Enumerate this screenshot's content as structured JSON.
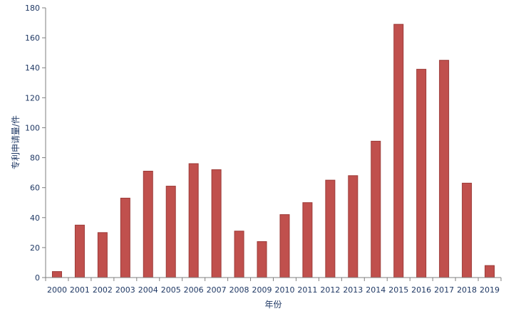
{
  "chart_data": {
    "type": "bar",
    "categories": [
      "2000",
      "2001",
      "2002",
      "2003",
      "2004",
      "2005",
      "2006",
      "2007",
      "2008",
      "2009",
      "2010",
      "2011",
      "2012",
      "2013",
      "2014",
      "2015",
      "2016",
      "2017",
      "2018",
      "2019"
    ],
    "values": [
      4,
      35,
      30,
      53,
      71,
      61,
      76,
      72,
      31,
      24,
      42,
      50,
      65,
      68,
      91,
      169,
      139,
      145,
      63,
      8
    ],
    "xlabel": "年份",
    "ylabel": "专利申请量/件",
    "ylim": [
      0,
      180
    ],
    "yticks": [
      0,
      20,
      40,
      60,
      80,
      100,
      120,
      140,
      160,
      180
    ],
    "grid": false,
    "bar_color": "#c0504d",
    "bar_edge_color": "#9c3a37"
  }
}
